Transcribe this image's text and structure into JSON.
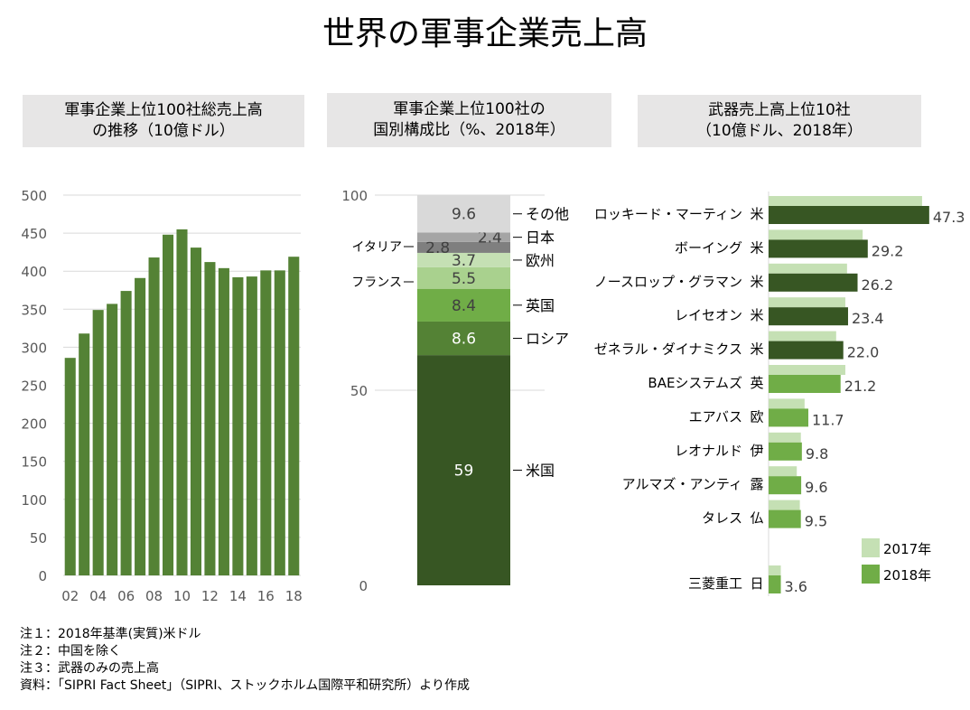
{
  "title": "世界の軍事企業売上高",
  "notes": [
    "注１：2018年基準(実質)米ドル",
    "注２：中国を除く",
    "注３：武器のみの売上高",
    "資料：「SIPRI Fact Sheet」（SIPRI、ストックホルム国際平和研究所）より作成"
  ],
  "chart_data": [
    {
      "type": "bar",
      "title": "軍事企業上位100社総売上高の推移（10億ドル）",
      "title_lines": [
        "軍事企業上位100社総売上高",
        "の推移（10億ドル）"
      ],
      "categories": [
        "02",
        "03",
        "04",
        "05",
        "06",
        "07",
        "08",
        "09",
        "10",
        "11",
        "12",
        "13",
        "14",
        "15",
        "16",
        "17",
        "18"
      ],
      "tick_labels": [
        "02",
        "04",
        "06",
        "08",
        "10",
        "12",
        "14",
        "16",
        "18"
      ],
      "values": [
        286,
        318,
        349,
        357,
        374,
        391,
        418,
        448,
        455,
        431,
        412,
        404,
        392,
        393,
        401,
        401,
        419
      ],
      "ylim": [
        0,
        500
      ],
      "yticks": [
        0,
        50,
        100,
        150,
        200,
        250,
        300,
        350,
        400,
        450,
        500
      ],
      "grid": true,
      "color": "#548235"
    },
    {
      "type": "bar",
      "stacked": true,
      "title": "軍事企業上位100社の国別構成比（%、2018年）",
      "title_lines": [
        "軍事企業上位100社の",
        "国別構成比（%、2018年）"
      ],
      "ylim": [
        0,
        100
      ],
      "yticks": [
        0,
        50,
        100
      ],
      "grid": true,
      "segments": [
        {
          "name": "米国",
          "value": 59,
          "label": "59",
          "color": "#375623",
          "side": "right",
          "text_color": "#ffffff"
        },
        {
          "name": "ロシア",
          "value": 8.6,
          "label": "8.6",
          "color": "#548235",
          "side": "right",
          "text_color": "#ffffff"
        },
        {
          "name": "英国",
          "value": 8.4,
          "label": "8.4",
          "color": "#70ad47",
          "side": "right",
          "text_color": "#404040"
        },
        {
          "name": "フランス",
          "value": 5.5,
          "label": "5.5",
          "color": "#a9d18e",
          "side": "left",
          "text_color": "#404040"
        },
        {
          "name": "欧州",
          "value": 3.7,
          "label": "3.7",
          "color": "#c5e0b4",
          "side": "right",
          "text_color": "#404040"
        },
        {
          "name": "イタリア",
          "value": 2.8,
          "label": "2.8",
          "color": "#7f7f7f",
          "side": "left",
          "text_color": "#404040"
        },
        {
          "name": "日本",
          "value": 2.4,
          "label": "2.4",
          "color": "#a5a5a5",
          "side": "right",
          "text_color": "#404040"
        },
        {
          "name": "その他",
          "value": 9.6,
          "label": "9.6",
          "color": "#d9d9d9",
          "side": "right",
          "text_color": "#404040"
        }
      ]
    },
    {
      "type": "bar",
      "orientation": "horizontal",
      "title": "武器売上高上位10社（10億ドル、2018年）",
      "title_lines": [
        "武器売上高上位10社",
        "（10億ドル、2018年）"
      ],
      "legend": "bottom-right",
      "series": [
        {
          "name": "2017年",
          "color": "#c5e0b4"
        },
        {
          "name": "2018年",
          "color": "#70ad47"
        }
      ],
      "rows": [
        {
          "company": "ロッキード・マーティン",
          "country": "米",
          "v2017": 45.2,
          "v2018": 47.3,
          "label": "47.3",
          "color": "#375623"
        },
        {
          "company": "ボーイング",
          "country": "米",
          "v2017": 27.7,
          "v2018": 29.2,
          "label": "29.2",
          "color": "#375623"
        },
        {
          "company": "ノースロップ・グラマン",
          "country": "米",
          "v2017": 23.1,
          "v2018": 26.2,
          "label": "26.2",
          "color": "#375623"
        },
        {
          "company": "レイセオン",
          "country": "米",
          "v2017": 22.6,
          "v2018": 23.4,
          "label": "23.4",
          "color": "#375623"
        },
        {
          "company": "ゼネラル・ダイナミクス",
          "country": "米",
          "v2017": 19.9,
          "v2018": 22.0,
          "label": "22.0",
          "color": "#375623"
        },
        {
          "company": "BAEシステムズ",
          "country": "英",
          "v2017": 22.6,
          "v2018": 21.2,
          "label": "21.2",
          "color": "#70ad47"
        },
        {
          "company": "エアバス",
          "country": "欧",
          "v2017": 10.6,
          "v2018": 11.7,
          "label": "11.7",
          "color": "#70ad47"
        },
        {
          "company": "レオナルド",
          "country": "伊",
          "v2017": 9.5,
          "v2018": 9.8,
          "label": "9.8",
          "color": "#70ad47"
        },
        {
          "company": "アルマズ・アンティ",
          "country": "露",
          "v2017": 8.3,
          "v2018": 9.6,
          "label": "9.6",
          "color": "#70ad47"
        },
        {
          "company": "タレス",
          "country": "仏",
          "v2017": 9.2,
          "v2018": 9.5,
          "label": "9.5",
          "color": "#70ad47"
        },
        {
          "company": "三菱重工",
          "country": "日",
          "v2017": 3.6,
          "v2018": 3.6,
          "label": "3.6",
          "color": "#70ad47"
        }
      ]
    }
  ]
}
